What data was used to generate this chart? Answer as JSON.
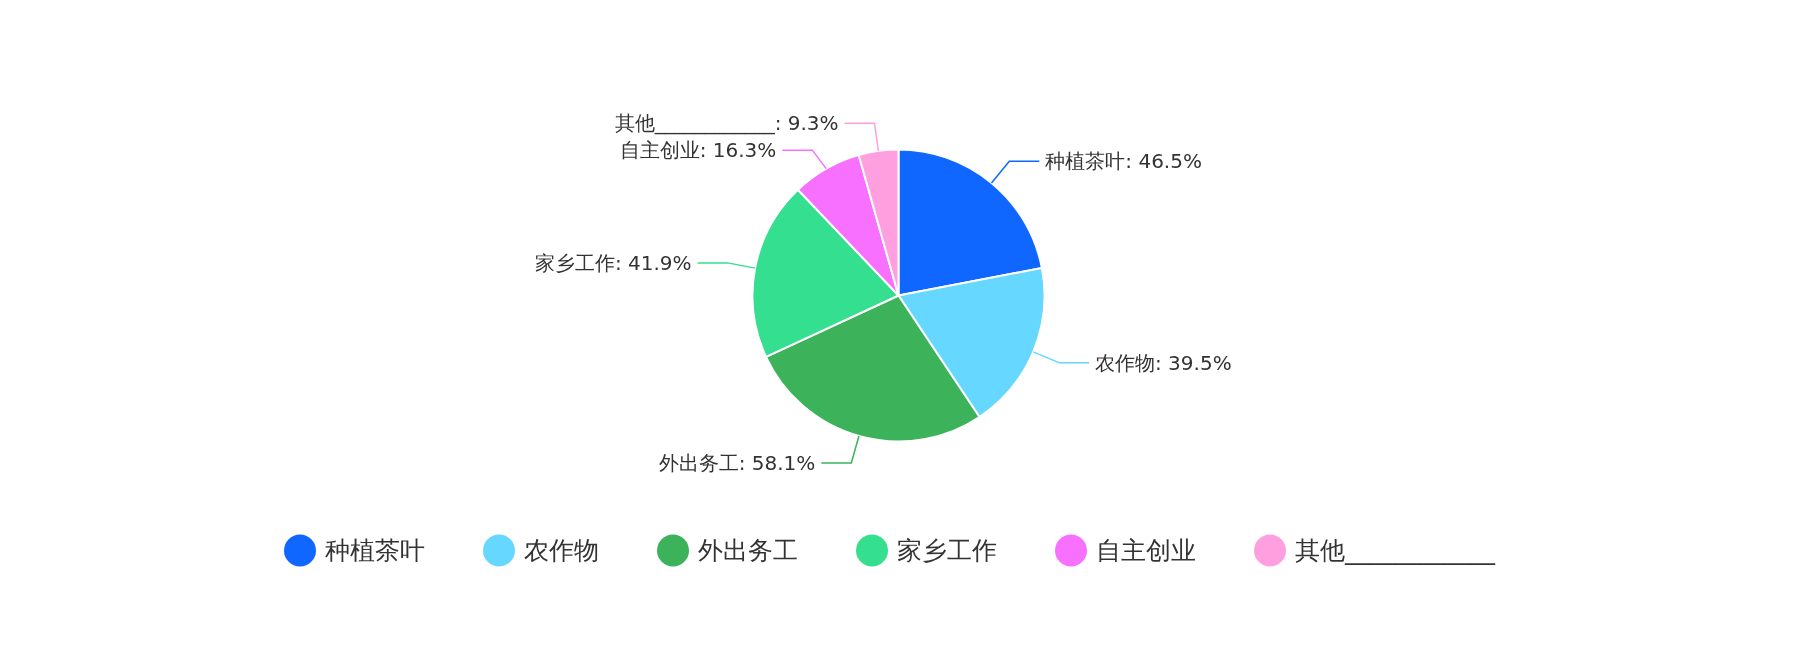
{
  "chart_data": {
    "type": "pie",
    "categories": [
      "种植茶叶",
      "农作物",
      "外出务工",
      "家乡工作",
      "自主创业",
      "其他____________"
    ],
    "values": [
      46.5,
      39.5,
      58.1,
      41.9,
      16.3,
      9.3
    ],
    "value_labels": [
      "种植茶叶: 46.5%",
      "农作物: 39.5%",
      "外出务工: 58.1%",
      "家乡工作: 41.9%",
      "自主创业: 16.3%",
      "其他____________: 9.3%"
    ],
    "colors": [
      "#1067ff",
      "#66d8ff",
      "#3cb35a",
      "#34df8f",
      "#f770ff",
      "#ff9fe0"
    ],
    "legend": "bottom"
  }
}
